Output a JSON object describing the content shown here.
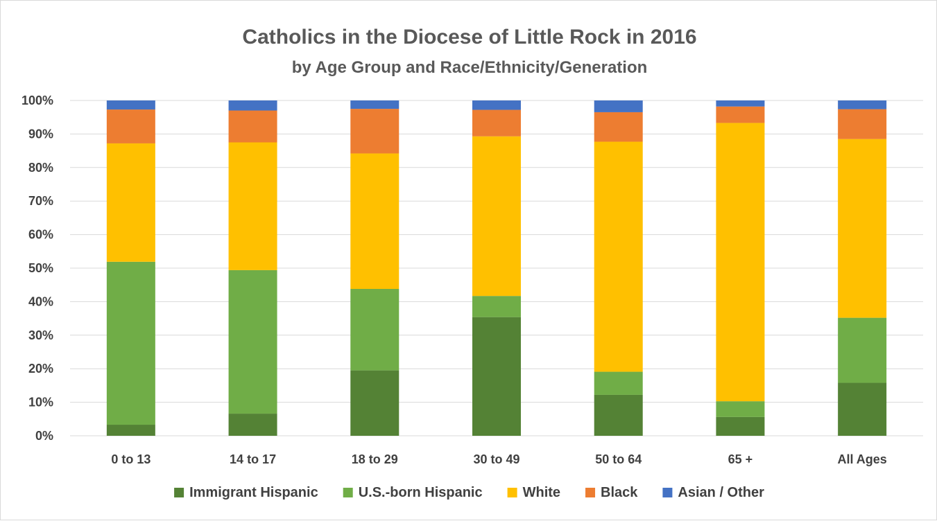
{
  "chart_data": {
    "type": "bar",
    "stacked": true,
    "title": "Catholics in the Diocese of Little Rock in 2016",
    "subtitle": "by Age Group and Race/Ethnicity/Generation",
    "categories": [
      "0 to 13",
      "14 to 17",
      "18 to 29",
      "30 to 49",
      "50 to 64",
      "65 +",
      "All Ages"
    ],
    "ylim": [
      0,
      100
    ],
    "yticks": [
      "0%",
      "10%",
      "20%",
      "30%",
      "40%",
      "50%",
      "60%",
      "70%",
      "80%",
      "90%",
      "100%"
    ],
    "grid": true,
    "legend_position": "bottom",
    "series": [
      {
        "name": "Immigrant Hispanic",
        "color": "#548235",
        "values": [
          3.3,
          6.6,
          19.5,
          35.4,
          12.2,
          5.6,
          15.8
        ]
      },
      {
        "name": "U.S.-born Hispanic",
        "color": "#70ad47",
        "values": [
          48.6,
          42.8,
          24.3,
          6.3,
          6.9,
          4.7,
          19.4
        ]
      },
      {
        "name": "White",
        "color": "#ffc000",
        "values": [
          35.3,
          38.1,
          40.4,
          47.6,
          68.6,
          83.0,
          53.3
        ]
      },
      {
        "name": "Black",
        "color": "#ed7d31",
        "values": [
          10.1,
          9.5,
          13.3,
          7.9,
          8.8,
          4.9,
          8.9
        ]
      },
      {
        "name": "Asian / Other",
        "color": "#4472c4",
        "values": [
          2.7,
          3.0,
          2.5,
          2.8,
          3.5,
          1.8,
          2.6
        ]
      }
    ]
  }
}
